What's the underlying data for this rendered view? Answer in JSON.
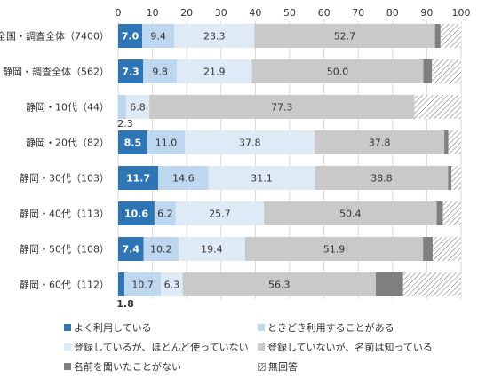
{
  "chart_data": {
    "type": "bar",
    "orientation": "horizontal",
    "stacked": true,
    "xlim": [
      0,
      100
    ],
    "x_ticks": [
      0,
      10,
      20,
      30,
      40,
      50,
      60,
      70,
      80,
      90,
      100
    ],
    "grid": true,
    "legend_position": "bottom",
    "categories": [
      "全国・調査全体（7400）",
      "静岡・調査全体（562）",
      "静岡・10代（44）",
      "静岡・20代（82）",
      "静岡・30代（103）",
      "静岡・40代（113）",
      "静岡・50代（108）",
      "静岡・60代（112）"
    ],
    "series": [
      {
        "name": "よく利用している",
        "color": "#2e75b6",
        "label_color": "#ffffff",
        "label_bold": true,
        "values": [
          7.0,
          7.3,
          0,
          8.5,
          11.7,
          10.6,
          7.4,
          1.8
        ],
        "labels": [
          "7.0",
          "7.3",
          "",
          "8.5",
          "11.7",
          "10.6",
          "7.4",
          "1.8"
        ]
      },
      {
        "name": "ときどき利用することがある",
        "color": "#bdd7ee",
        "label_color": "#333333",
        "label_bold": false,
        "values": [
          9.4,
          9.8,
          2.3,
          11.0,
          14.6,
          6.2,
          10.2,
          10.7
        ],
        "labels": [
          "9.4",
          "9.8",
          "2.3",
          "11.0",
          "14.6",
          "6.2",
          "10.2",
          "10.7"
        ]
      },
      {
        "name": "登録しているが、ほとんど使っていない",
        "color": "#deebf7",
        "label_color": "#333333",
        "label_bold": false,
        "values": [
          23.3,
          21.9,
          6.8,
          37.8,
          31.1,
          25.7,
          19.4,
          6.3
        ],
        "labels": [
          "23.3",
          "21.9",
          "6.8",
          "37.8",
          "31.1",
          "25.7",
          "19.4",
          "6.3"
        ]
      },
      {
        "name": "登録していないが、名前は知っている",
        "color": "#c9c9c9",
        "label_color": "#333333",
        "label_bold": false,
        "values": [
          52.7,
          50.0,
          77.3,
          37.8,
          38.8,
          50.4,
          51.9,
          56.3
        ],
        "labels": [
          "52.7",
          "50.0",
          "77.3",
          "37.8",
          "38.8",
          "50.4",
          "51.9",
          "56.3"
        ]
      },
      {
        "name": "名前を聞いたことがない",
        "color": "#7f7f7f",
        "label_color": "#ffffff",
        "label_bold": false,
        "values": [
          1.6,
          2.5,
          0,
          1.2,
          1.0,
          1.8,
          2.8,
          8.0
        ],
        "labels": [
          "",
          "",
          "",
          "",
          "",
          "",
          "",
          ""
        ]
      },
      {
        "name": "無回答",
        "color": "hatch",
        "label_color": "#333333",
        "label_bold": false,
        "values": [
          6.0,
          8.5,
          13.6,
          3.7,
          2.8,
          5.3,
          8.3,
          16.9
        ],
        "labels": [
          "",
          "",
          "",
          "",
          "",
          "",
          "",
          ""
        ]
      }
    ],
    "outside_labels": [
      {
        "category_index": 3,
        "position": "above",
        "text": "2.3"
      },
      {
        "category_index": 7,
        "position": "below",
        "text": "1.8"
      }
    ]
  }
}
